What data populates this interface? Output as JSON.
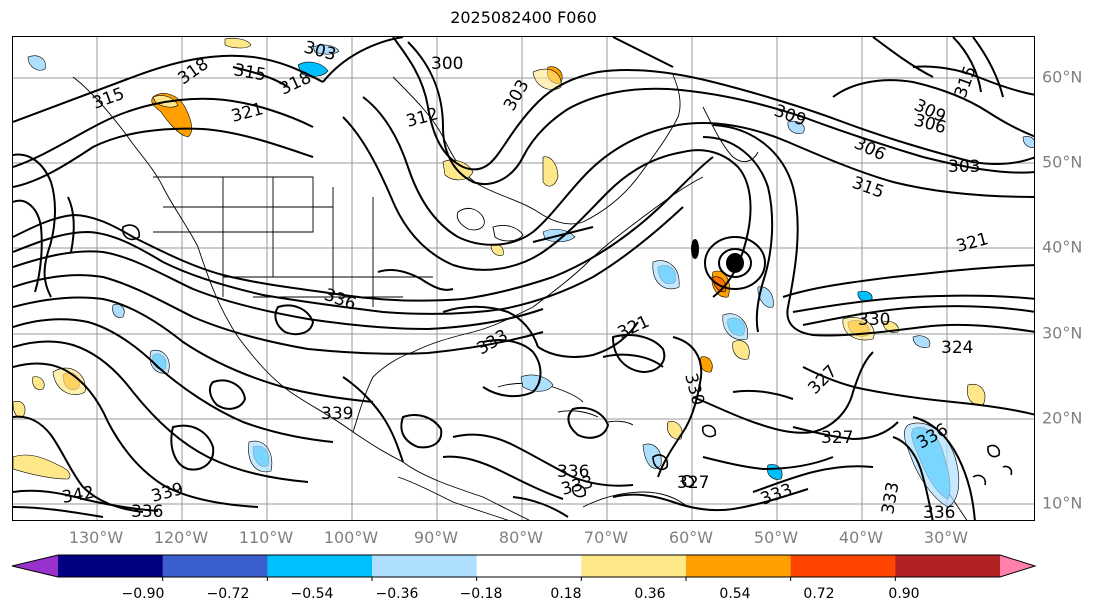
{
  "title": "2025082400 F060",
  "longitude_labels": [
    "130°W",
    "120°W",
    "110°W",
    "100°W",
    "90°W",
    "80°W",
    "70°W",
    "60°W",
    "50°W",
    "40°W",
    "30°W"
  ],
  "latitude_labels": [
    "60°N",
    "50°N",
    "40°N",
    "30°N",
    "20°N",
    "10°N"
  ],
  "contour_labels": [
    "303",
    "300",
    "315",
    "318",
    "315",
    "318",
    "321",
    "312",
    "303",
    "309",
    "306",
    "309",
    "306",
    "303",
    "315",
    "315",
    "321",
    "321",
    "324",
    "327",
    "330",
    "333",
    "336",
    "339",
    "342",
    "336",
    "339",
    "336",
    "333",
    "327",
    "330",
    "327",
    "333",
    "336",
    "333",
    "336"
  ],
  "colorbar": {
    "tick_labels": [
      "−0.90",
      "−0.72",
      "−0.54",
      "−0.36",
      "−0.18",
      "0.18",
      "0.36",
      "0.54",
      "0.72",
      "0.90"
    ],
    "colors": [
      "#9932cc",
      "#000080",
      "#3b5fcd",
      "#00bfff",
      "#afdfff",
      "#ffffff",
      "#ffe88a",
      "#ffa000",
      "#ff4500",
      "#b22222",
      "#ff80a8"
    ]
  },
  "fill_colors": {
    "neg_light": "#afdfff",
    "neg_mid": "#00bfff",
    "pos_light": "#ffe88a",
    "pos_mid": "#ffa000"
  }
}
